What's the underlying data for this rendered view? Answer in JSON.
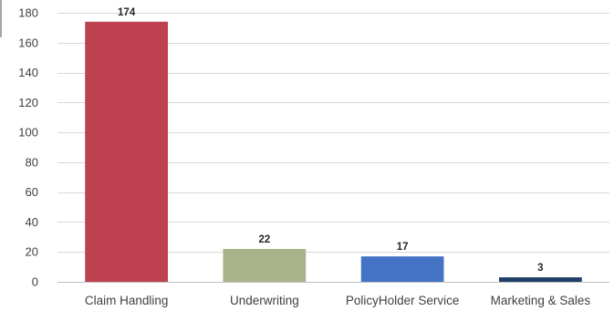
{
  "chart_data": {
    "type": "bar",
    "categories": [
      "Claim Handling",
      "Underwriting",
      "PolicyHolder Service",
      "Marketing & Sales"
    ],
    "values": [
      174,
      22,
      17,
      3
    ],
    "data_labels": [
      "174",
      "22",
      "17",
      "3"
    ],
    "bar_colors": [
      "#be4150",
      "#a8b38b",
      "#4472c4",
      "#1f3f66"
    ],
    "title": "",
    "xlabel": "",
    "ylabel": "",
    "ylim": [
      0,
      180
    ],
    "y_ticks": [
      0,
      20,
      40,
      60,
      80,
      100,
      120,
      140,
      160,
      180
    ],
    "grid": true,
    "legend": "none"
  }
}
